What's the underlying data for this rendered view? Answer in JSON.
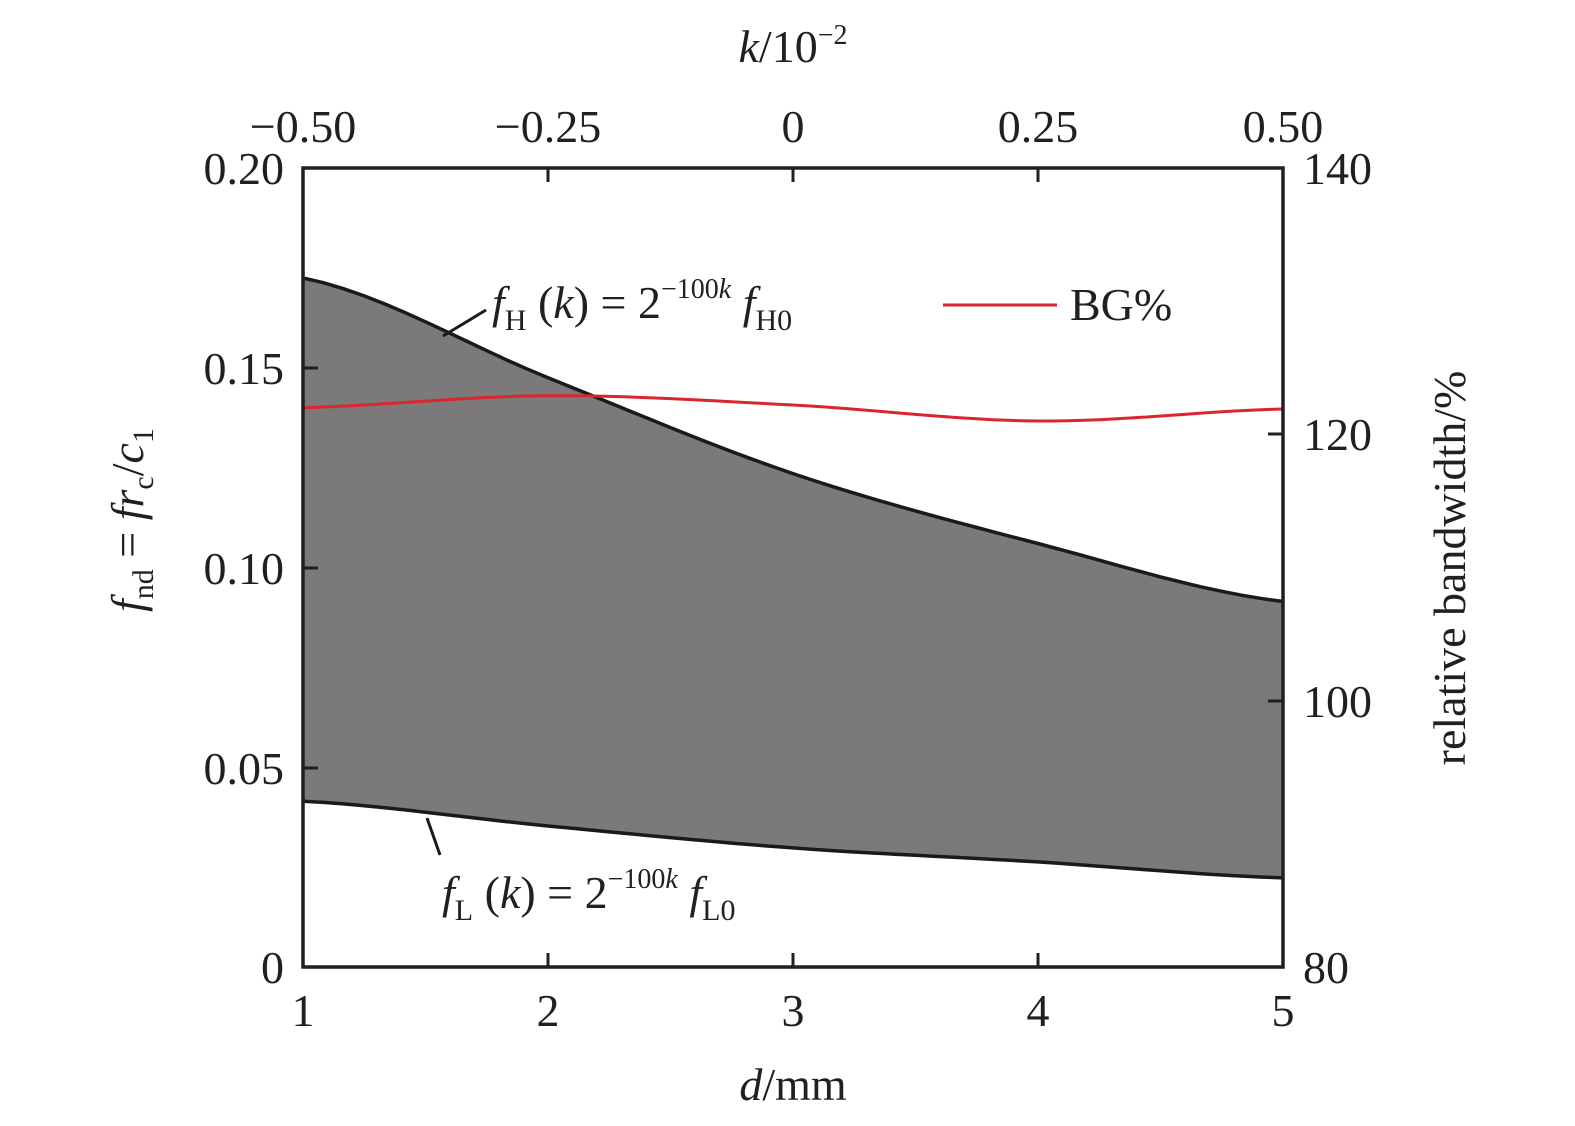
{
  "chart_data": {
    "type": "area",
    "title": "",
    "xlabel": "d/mm",
    "x2label": "k/10^-2",
    "ylabel": "f_nd = f r_c / c_1",
    "y2label": "relative bandwidth/%",
    "xlim": [
      1,
      5
    ],
    "ylim": [
      0,
      0.2
    ],
    "x2lim": [
      -0.5,
      0.5
    ],
    "y2lim": [
      80,
      140
    ],
    "x": [
      1,
      2,
      3,
      4,
      5
    ],
    "x2": [
      -0.5,
      -0.25,
      0,
      0.25,
      0.5
    ],
    "series": [
      {
        "name": "f_H(k) = 2^(-100k) f_H0",
        "axis": "left",
        "style": "line-black",
        "values": [
          0.1725,
          0.1475,
          0.1235,
          0.106,
          0.0915
        ]
      },
      {
        "name": "f_L(k) = 2^(-100k) f_L0",
        "axis": "left",
        "style": "line-black",
        "values": [
          0.0415,
          0.0353,
          0.0298,
          0.0263,
          0.0223
        ]
      },
      {
        "name": "BG%",
        "axis": "right",
        "style": "line-red",
        "values": [
          122.0,
          122.9,
          122.2,
          121.0,
          121.9
        ]
      }
    ],
    "fill_between": {
      "upper": "f_H",
      "lower": "f_L",
      "color": "#7b797a"
    },
    "grid": false,
    "legend": {
      "position": "upper-right",
      "entries": [
        "BG%"
      ]
    },
    "annotations": [
      "f_H (k) = 2^-100k f_H0",
      "f_L (k) = 2^-100k f_L0"
    ]
  },
  "axes": {
    "bottom": {
      "title_var": "d",
      "title_unit": "/mm",
      "ticks": [
        "1",
        "2",
        "3",
        "4",
        "5"
      ]
    },
    "top": {
      "title_var": "k",
      "title_unit": "/10",
      "title_exp": "−2",
      "ticks": [
        "−0.50",
        "−0.25",
        "0",
        "0.25",
        "0.50"
      ]
    },
    "left": {
      "ticks": [
        "0",
        "0.05",
        "0.10",
        "0.15",
        "0.20"
      ],
      "title_f": "f",
      "title_sub": "nd",
      "title_eq": " = ",
      "title_fr": "fr",
      "title_c_sub": "c",
      "title_slash": "/",
      "title_c": "c",
      "title_1": "1"
    },
    "right": {
      "title": "relative bandwidth/%",
      "ticks": [
        "80",
        "100",
        "120",
        "140"
      ]
    }
  },
  "legend": {
    "label": "BG%"
  },
  "annotations": {
    "fh": {
      "f": "f",
      "sub": "H",
      "open": " (",
      "k": "k",
      "close": ") = 2",
      "exp": "−100",
      "expk": "k",
      "f2": " f",
      "sub2": "H0"
    },
    "fl": {
      "f": "f",
      "sub": "L",
      "open": " (",
      "k": "k",
      "close": ") = 2",
      "exp": "−100",
      "expk": "k",
      "f2": " f",
      "sub2": "L0"
    }
  },
  "colors": {
    "fill": "#7b797a",
    "bg_line": "#d9262e",
    "axis": "#231f20"
  }
}
